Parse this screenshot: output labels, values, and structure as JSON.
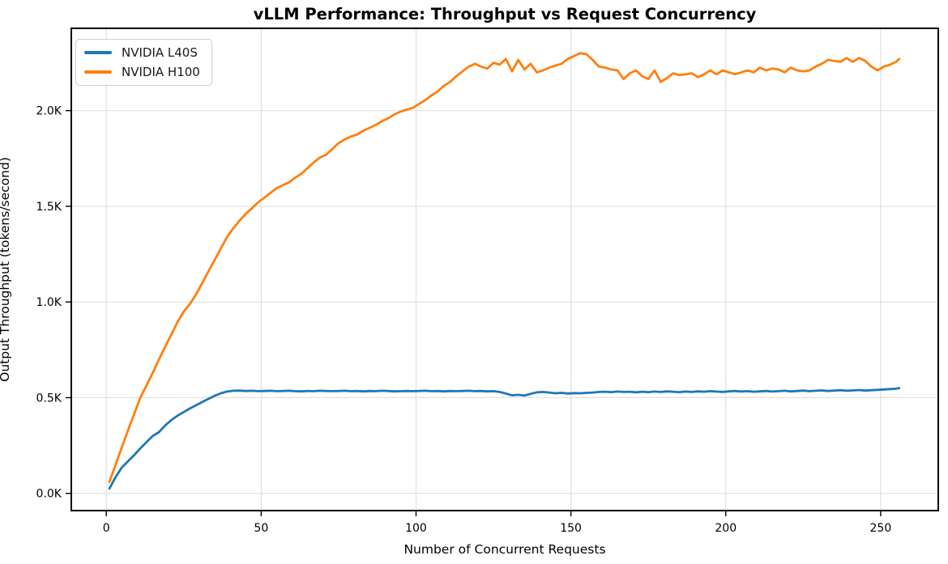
{
  "figure": {
    "background": "#ffffff",
    "spine_color": "#000000",
    "text_color": "#000000"
  },
  "chart_data": {
    "type": "line",
    "title": "vLLM Performance: Throughput vs Request Concurrency",
    "xlabel": "Number of Concurrent Requests",
    "ylabel": "Output Throughput (tokens/second)",
    "unit": "tokens/second",
    "xlim": [
      -11.3,
      268.6
    ],
    "ylim": [
      -90,
      2430
    ],
    "xticks": [
      0,
      50,
      100,
      150,
      200,
      250
    ],
    "xtick_labels": [
      "0",
      "50",
      "100",
      "150",
      "200",
      "250"
    ],
    "yticks": [
      0,
      500,
      1000,
      1500,
      2000
    ],
    "ytick_labels": [
      "0.0K",
      "0.5K",
      "1.0K",
      "1.5K",
      "2.0K"
    ],
    "grid": true,
    "grid_color": "#e0e0e0",
    "legend_position": "upper-left",
    "x": [
      1,
      3,
      5,
      7,
      9,
      11,
      13,
      15,
      17,
      19,
      21,
      23,
      25,
      27,
      29,
      31,
      33,
      35,
      37,
      39,
      41,
      43,
      45,
      47,
      49,
      51,
      53,
      55,
      57,
      59,
      61,
      63,
      65,
      67,
      69,
      71,
      73,
      75,
      77,
      79,
      81,
      83,
      85,
      87,
      89,
      91,
      93,
      95,
      97,
      99,
      101,
      103,
      105,
      107,
      109,
      111,
      113,
      115,
      117,
      119,
      121,
      123,
      125,
      127,
      129,
      131,
      133,
      135,
      137,
      139,
      141,
      143,
      145,
      147,
      149,
      151,
      153,
      155,
      157,
      159,
      161,
      163,
      165,
      167,
      169,
      171,
      173,
      175,
      177,
      179,
      181,
      183,
      185,
      187,
      189,
      191,
      193,
      195,
      197,
      199,
      201,
      203,
      205,
      207,
      209,
      211,
      213,
      215,
      217,
      219,
      221,
      223,
      225,
      227,
      229,
      231,
      233,
      235,
      237,
      239,
      241,
      243,
      245,
      247,
      249,
      251,
      253,
      255,
      256
    ],
    "series": [
      {
        "name": "NVIDIA L40S",
        "color": "#1f77b4",
        "values": [
          25,
          85,
          135,
          168,
          200,
          235,
          268,
          300,
          320,
          355,
          383,
          406,
          425,
          444,
          461,
          478,
          494,
          510,
          523,
          532,
          536,
          537,
          535,
          536,
          534,
          535,
          536,
          534,
          535,
          536,
          534,
          533,
          535,
          534,
          536,
          535,
          534,
          535,
          536,
          534,
          535,
          533,
          535,
          534,
          536,
          535,
          533,
          534,
          535,
          534,
          535,
          536,
          534,
          535,
          533,
          535,
          534,
          535,
          536,
          534,
          535,
          533,
          534,
          530,
          522,
          512,
          515,
          511,
          520,
          528,
          530,
          527,
          523,
          525,
          522,
          524,
          523,
          525,
          527,
          530,
          531,
          529,
          532,
          530,
          531,
          528,
          531,
          529,
          532,
          530,
          533,
          531,
          529,
          532,
          530,
          533,
          531,
          534,
          532,
          530,
          533,
          535,
          532,
          534,
          531,
          533,
          535,
          532,
          534,
          536,
          533,
          535,
          537,
          534,
          536,
          538,
          535,
          537,
          539,
          536,
          538,
          540,
          537,
          539,
          541,
          543,
          545,
          547,
          550
        ]
      },
      {
        "name": "NVIDIA H100",
        "color": "#ff7f0e",
        "values": [
          60,
          150,
          240,
          330,
          415,
          500,
          565,
          630,
          700,
          765,
          830,
          895,
          950,
          990,
          1040,
          1100,
          1160,
          1220,
          1280,
          1340,
          1385,
          1425,
          1460,
          1490,
          1520,
          1545,
          1570,
          1595,
          1610,
          1625,
          1650,
          1670,
          1700,
          1730,
          1755,
          1770,
          1800,
          1830,
          1850,
          1865,
          1875,
          1895,
          1910,
          1925,
          1945,
          1960,
          1980,
          1995,
          2005,
          2015,
          2035,
          2055,
          2080,
          2100,
          2130,
          2150,
          2180,
          2205,
          2230,
          2245,
          2230,
          2220,
          2250,
          2240,
          2270,
          2205,
          2265,
          2215,
          2245,
          2200,
          2210,
          2225,
          2235,
          2245,
          2270,
          2285,
          2300,
          2295,
          2265,
          2230,
          2225,
          2215,
          2210,
          2165,
          2195,
          2210,
          2180,
          2165,
          2210,
          2150,
          2170,
          2195,
          2185,
          2190,
          2195,
          2175,
          2190,
          2210,
          2190,
          2210,
          2200,
          2190,
          2200,
          2210,
          2200,
          2225,
          2210,
          2220,
          2215,
          2200,
          2225,
          2210,
          2205,
          2210,
          2230,
          2245,
          2265,
          2260,
          2255,
          2275,
          2255,
          2275,
          2260,
          2230,
          2210,
          2230,
          2240,
          2255,
          2270
        ]
      }
    ]
  }
}
